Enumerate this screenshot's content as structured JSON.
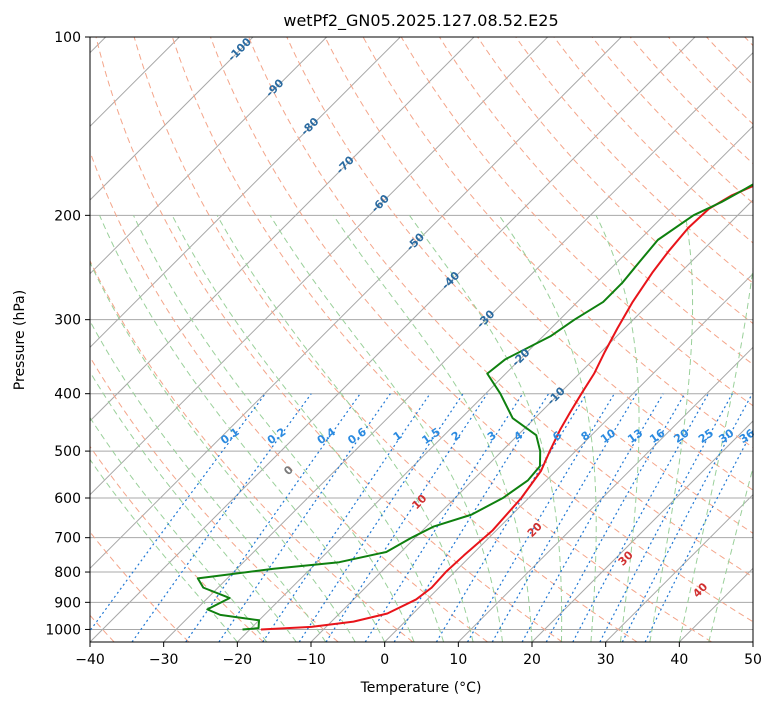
{
  "chart_data": {
    "type": "line",
    "title": "wetPf2_GN05.2025.127.08.52.E25",
    "xlabel": "Temperature (°C)",
    "ylabel": "Pressure (hPa)",
    "xlim": [
      -40,
      50
    ],
    "ylim_hpa": [
      1050,
      100
    ],
    "x_ticks": [
      "−40",
      "−30",
      "−20",
      "−10",
      "0",
      "10",
      "20",
      "30",
      "40",
      "50"
    ],
    "y_ticks": [
      "100",
      "200",
      "300",
      "400",
      "500",
      "600",
      "700",
      "800",
      "900",
      "1000"
    ],
    "series": [
      {
        "color": "#e8141a",
        "points": [
          [
            -18.5,
            1000
          ],
          [
            -12,
            990
          ],
          [
            -7,
            970
          ],
          [
            -3.5,
            940
          ],
          [
            -1.5,
            890
          ],
          [
            -1.0,
            850
          ],
          [
            -1.2,
            800
          ],
          [
            -1.0,
            750
          ],
          [
            -0.5,
            680
          ],
          [
            -1.0,
            600
          ],
          [
            -2.0,
            540
          ],
          [
            -3.5,
            500
          ],
          [
            -5.0,
            460
          ],
          [
            -6.0,
            430
          ],
          [
            -7.0,
            400
          ],
          [
            -8.0,
            370
          ],
          [
            -9.5,
            340
          ],
          [
            -11.0,
            310
          ],
          [
            -12.5,
            280
          ],
          [
            -13.8,
            250
          ],
          [
            -14.5,
            230
          ],
          [
            -15.0,
            210
          ],
          [
            -14.8,
            195
          ],
          [
            -13.5,
            185
          ],
          [
            -11,
            175
          ],
          [
            -7,
            165
          ],
          [
            -2,
            155
          ],
          [
            2,
            148
          ],
          [
            6,
            140
          ],
          [
            7.5,
            130
          ],
          [
            9.0,
            120
          ],
          [
            11.0,
            110
          ],
          [
            11.8,
            100
          ]
        ]
      },
      {
        "color": "#0f800f",
        "points": [
          [
            -21,
            1000
          ],
          [
            -19,
            995
          ],
          [
            -19.5,
            980
          ],
          [
            -20,
            965
          ],
          [
            -26,
            945
          ],
          [
            -28.5,
            925
          ],
          [
            -27,
            885
          ],
          [
            -32,
            850
          ],
          [
            -34,
            820
          ],
          [
            -25,
            790
          ],
          [
            -17,
            770
          ],
          [
            -12,
            740
          ],
          [
            -10.5,
            700
          ],
          [
            -9,
            670
          ],
          [
            -5.5,
            640
          ],
          [
            -3.5,
            600
          ],
          [
            -2.5,
            560
          ],
          [
            -2.8,
            530
          ],
          [
            -4.8,
            500
          ],
          [
            -7.5,
            470
          ],
          [
            -13,
            440
          ],
          [
            -18,
            400
          ],
          [
            -22.5,
            370
          ],
          [
            -22,
            350
          ],
          [
            -19,
            320
          ],
          [
            -18,
            300
          ],
          [
            -16.5,
            280
          ],
          [
            -16.5,
            260
          ],
          [
            -17,
            240
          ],
          [
            -17.5,
            220
          ],
          [
            -16,
            200
          ],
          [
            -14,
            190
          ],
          [
            -12.5,
            180
          ],
          [
            -11,
            170
          ],
          [
            -10,
            155
          ],
          [
            -9,
            140
          ],
          [
            -7.5,
            125
          ],
          [
            -5.5,
            112
          ],
          [
            -4.5,
            100
          ]
        ]
      }
    ],
    "dry_adiabat_labels": [
      "-100",
      "-90",
      "-80",
      "-70",
      "-60",
      "-50",
      "-40",
      "-30",
      "-20",
      "-10"
    ],
    "mixing_ratio_labels": [
      "0.1",
      "0.2",
      "0.4",
      "0.6",
      "1",
      "1.5",
      "2",
      "3",
      "4",
      "6",
      "8",
      "10",
      "13",
      "16",
      "20",
      "25",
      "30",
      "36"
    ],
    "moist_adiabat_labels": [
      "0",
      "10",
      "20",
      "30",
      "40"
    ],
    "grid": true,
    "skew": true,
    "colors": {
      "isotherm": "#a8a8a8",
      "isobar": "#a8a8a8",
      "dry_adiabat": "#f4a58a",
      "moist_adiabat": "#9ad09a",
      "mixing_ratio": "#1f77d4",
      "dry_label": "#2a6aa0",
      "mix_label": "#2a8ae0",
      "moist_label_cold": "#7a7a7a",
      "moist_label_warm": "#d13030"
    }
  }
}
